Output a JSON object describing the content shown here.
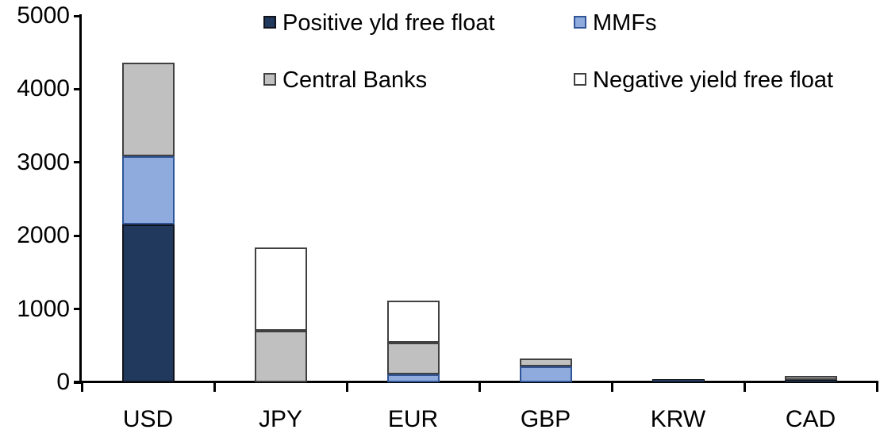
{
  "chart_data": {
    "type": "bar",
    "stacked": true,
    "title": "",
    "xlabel": "",
    "ylabel": "",
    "categories": [
      "USD",
      "JPY",
      "EUR",
      "GBP",
      "KRW",
      "CAD"
    ],
    "series": [
      {
        "name": "Positive yld free float",
        "color": "#20395D",
        "border": "#10131B",
        "values": [
          2150,
          0,
          0,
          0,
          45,
          35
        ]
      },
      {
        "name": "MMFs",
        "color": "#8FAADC",
        "border": "#2F5597",
        "values": [
          930,
          0,
          110,
          220,
          0,
          0
        ]
      },
      {
        "name": "Central Banks",
        "color": "#C0C0C0",
        "border": "#404040",
        "values": [
          1280,
          700,
          430,
          110,
          0,
          55
        ]
      },
      {
        "name": "Negative yield free float",
        "color": "#FFFFFF",
        "border": "#404040",
        "values": [
          0,
          1140,
          570,
          0,
          0,
          0
        ]
      }
    ],
    "totals_by_category": [
      4360,
      1840,
      1110,
      330,
      45,
      90
    ],
    "ylim": [
      0,
      5000
    ],
    "yticks": [
      0,
      1000,
      2000,
      3000,
      4000,
      5000
    ],
    "grid": false,
    "legend_position": "top",
    "legend_order": [
      "Positive yld free float",
      "MMFs",
      "Central Banks",
      "Negative yield free float"
    ]
  },
  "legend": {
    "items": [
      {
        "label": "Positive yld free float"
      },
      {
        "label": "MMFs"
      },
      {
        "label": "Central Banks"
      },
      {
        "label": "Negative yield free float"
      }
    ]
  },
  "colors": {
    "axis": "#000000",
    "text": "#000000",
    "background": "#ffffff"
  }
}
